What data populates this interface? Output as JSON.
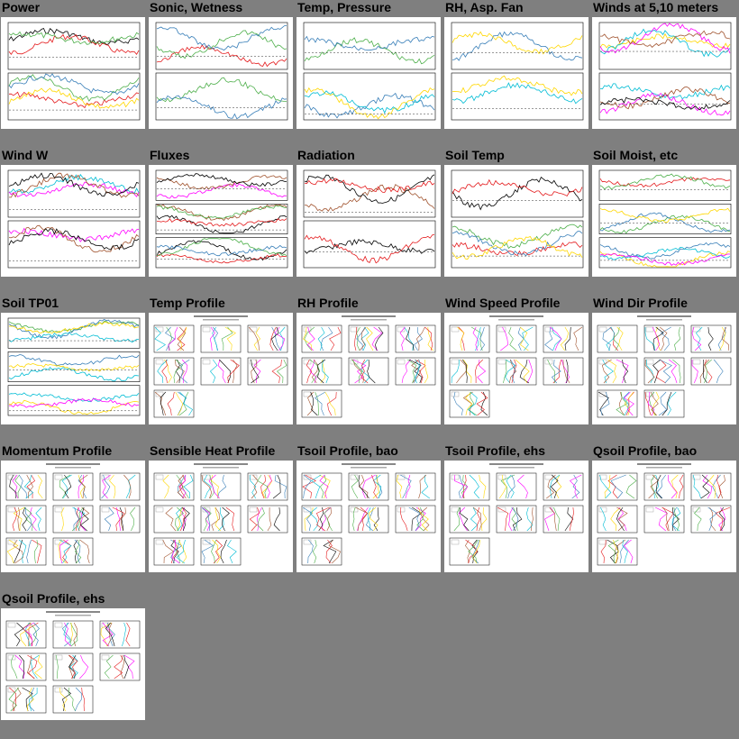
{
  "gallery": {
    "tiles": [
      {
        "title": "Power",
        "kind": "ts2"
      },
      {
        "title": "Sonic, Wetness",
        "kind": "ts2"
      },
      {
        "title": "Temp, Pressure",
        "kind": "ts2"
      },
      {
        "title": "RH, Asp. Fan",
        "kind": "ts2"
      },
      {
        "title": "Winds at 5,10 meters",
        "kind": "ts2"
      },
      {
        "title": "Wind W",
        "kind": "ts2"
      },
      {
        "title": "Fluxes",
        "kind": "ts3"
      },
      {
        "title": "Radiation",
        "kind": "ts2"
      },
      {
        "title": "Soil Temp",
        "kind": "ts2"
      },
      {
        "title": "Soil Moist, etc",
        "kind": "ts3"
      },
      {
        "title": "Soil TP01",
        "kind": "ts3"
      },
      {
        "title": "Temp Profile",
        "kind": "prof"
      },
      {
        "title": "RH Profile",
        "kind": "prof"
      },
      {
        "title": "Wind Speed Profile",
        "kind": "prof"
      },
      {
        "title": "Wind Dir Profile",
        "kind": "prof"
      },
      {
        "title": "Momentum Profile",
        "kind": "prof"
      },
      {
        "title": "Sensible Heat Profile",
        "kind": "prof"
      },
      {
        "title": "Tsoil Profile, bao",
        "kind": "prof"
      },
      {
        "title": "Tsoil Profile, ehs",
        "kind": "prof"
      },
      {
        "title": "Qsoil Profile, bao",
        "kind": "prof"
      },
      {
        "title": "Qsoil Profile, ehs",
        "kind": "prof"
      }
    ]
  },
  "colors": {
    "page_background": "#7f7f7f",
    "thumbnail_background": "#ffffff",
    "series": [
      "#e41a1c",
      "#4daf4a",
      "#377eb8",
      "#ffd700",
      "#00bcd4",
      "#ff00ff",
      "#a0522d",
      "#000000"
    ]
  }
}
